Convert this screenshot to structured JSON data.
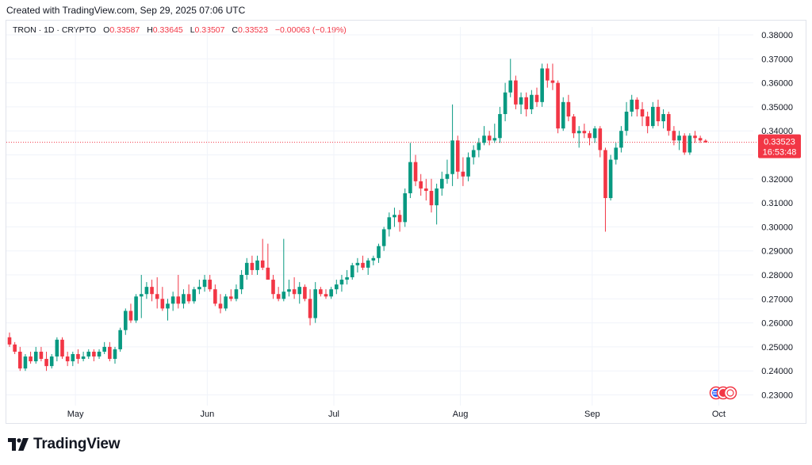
{
  "caption": "Created with TradingView.com, Sep 29, 2025 07:06 UTC",
  "legend": {
    "symbol": "TRON · 1D · CRYPTO",
    "open_label": "O",
    "open": "0.33587",
    "high_label": "H",
    "high": "0.33645",
    "low_label": "L",
    "low": "0.33507",
    "close_label": "C",
    "close": "0.33523",
    "change": "−0.00063 (−0.19%)"
  },
  "price_badge": {
    "price": "0.33523",
    "countdown": "16:53:48"
  },
  "brand": {
    "name": "TradingView"
  },
  "colors": {
    "up": "#089981",
    "down": "#f23645",
    "grid": "#f0f3fa",
    "text": "#131722"
  },
  "chart_data": {
    "type": "candlestick",
    "x_axis": {
      "ticks": [
        "May",
        "Jun",
        "Jul",
        "Aug",
        "Sep",
        "Oct"
      ]
    },
    "y_axis": {
      "position": "right",
      "range": [
        0.225,
        0.385
      ],
      "ticks": [
        "0.38000",
        "0.37000",
        "0.36000",
        "0.35000",
        "0.34000",
        "0.33000",
        "0.32000",
        "0.31000",
        "0.30000",
        "0.29000",
        "0.28000",
        "0.27000",
        "0.26000",
        "0.25000",
        "0.24000",
        "0.23000"
      ]
    },
    "last_price": 0.33523,
    "grid": true,
    "candles": [
      [
        0.254,
        0.256,
        0.25,
        0.251
      ],
      [
        0.251,
        0.252,
        0.247,
        0.248
      ],
      [
        0.248,
        0.25,
        0.24,
        0.241
      ],
      [
        0.241,
        0.247,
        0.24,
        0.246
      ],
      [
        0.246,
        0.248,
        0.243,
        0.244
      ],
      [
        0.244,
        0.25,
        0.243,
        0.248
      ],
      [
        0.248,
        0.25,
        0.244,
        0.245
      ],
      [
        0.245,
        0.248,
        0.24,
        0.242
      ],
      [
        0.242,
        0.247,
        0.241,
        0.246
      ],
      [
        0.246,
        0.254,
        0.244,
        0.253
      ],
      [
        0.253,
        0.254,
        0.245,
        0.246
      ],
      [
        0.246,
        0.248,
        0.242,
        0.244
      ],
      [
        0.244,
        0.248,
        0.242,
        0.247
      ],
      [
        0.247,
        0.249,
        0.243,
        0.245
      ],
      [
        0.245,
        0.248,
        0.244,
        0.246
      ],
      [
        0.246,
        0.249,
        0.245,
        0.248
      ],
      [
        0.248,
        0.249,
        0.244,
        0.246
      ],
      [
        0.246,
        0.249,
        0.245,
        0.248
      ],
      [
        0.248,
        0.252,
        0.247,
        0.25
      ],
      [
        0.25,
        0.252,
        0.244,
        0.245
      ],
      [
        0.245,
        0.25,
        0.243,
        0.249
      ],
      [
        0.249,
        0.258,
        0.248,
        0.257
      ],
      [
        0.257,
        0.266,
        0.255,
        0.265
      ],
      [
        0.265,
        0.268,
        0.26,
        0.261
      ],
      [
        0.261,
        0.272,
        0.26,
        0.271
      ],
      [
        0.271,
        0.28,
        0.262,
        0.272
      ],
      [
        0.272,
        0.277,
        0.27,
        0.275
      ],
      [
        0.275,
        0.278,
        0.269,
        0.272
      ],
      [
        0.272,
        0.279,
        0.266,
        0.27
      ],
      [
        0.27,
        0.275,
        0.265,
        0.266
      ],
      [
        0.266,
        0.27,
        0.261,
        0.268
      ],
      [
        0.268,
        0.273,
        0.265,
        0.271
      ],
      [
        0.271,
        0.28,
        0.266,
        0.268
      ],
      [
        0.268,
        0.274,
        0.266,
        0.272
      ],
      [
        0.272,
        0.276,
        0.268,
        0.269
      ],
      [
        0.269,
        0.275,
        0.268,
        0.274
      ],
      [
        0.274,
        0.278,
        0.272,
        0.275
      ],
      [
        0.275,
        0.28,
        0.273,
        0.278
      ],
      [
        0.278,
        0.28,
        0.273,
        0.274
      ],
      [
        0.274,
        0.276,
        0.267,
        0.268
      ],
      [
        0.268,
        0.272,
        0.264,
        0.266
      ],
      [
        0.266,
        0.272,
        0.265,
        0.271
      ],
      [
        0.271,
        0.274,
        0.269,
        0.27
      ],
      [
        0.27,
        0.276,
        0.269,
        0.274
      ],
      [
        0.274,
        0.282,
        0.272,
        0.28
      ],
      [
        0.28,
        0.287,
        0.278,
        0.285
      ],
      [
        0.285,
        0.288,
        0.28,
        0.282
      ],
      [
        0.282,
        0.288,
        0.28,
        0.286
      ],
      [
        0.286,
        0.295,
        0.282,
        0.283
      ],
      [
        0.283,
        0.293,
        0.278,
        0.278
      ],
      [
        0.278,
        0.28,
        0.27,
        0.272
      ],
      [
        0.272,
        0.275,
        0.269,
        0.27
      ],
      [
        0.27,
        0.295,
        0.269,
        0.273
      ],
      [
        0.273,
        0.278,
        0.271,
        0.274
      ],
      [
        0.274,
        0.279,
        0.27,
        0.272
      ],
      [
        0.272,
        0.277,
        0.268,
        0.275
      ],
      [
        0.275,
        0.276,
        0.269,
        0.27
      ],
      [
        0.27,
        0.274,
        0.259,
        0.262
      ],
      [
        0.262,
        0.277,
        0.26,
        0.274
      ],
      [
        0.274,
        0.275,
        0.271,
        0.272
      ],
      [
        0.272,
        0.274,
        0.27,
        0.271
      ],
      [
        0.271,
        0.275,
        0.27,
        0.274
      ],
      [
        0.274,
        0.278,
        0.272,
        0.276
      ],
      [
        0.276,
        0.28,
        0.273,
        0.278
      ],
      [
        0.278,
        0.282,
        0.276,
        0.279
      ],
      [
        0.279,
        0.285,
        0.278,
        0.284
      ],
      [
        0.284,
        0.287,
        0.281,
        0.285
      ],
      [
        0.285,
        0.288,
        0.282,
        0.283
      ],
      [
        0.283,
        0.287,
        0.28,
        0.286
      ],
      [
        0.286,
        0.288,
        0.284,
        0.287
      ],
      [
        0.287,
        0.293,
        0.285,
        0.292
      ],
      [
        0.292,
        0.3,
        0.29,
        0.299
      ],
      [
        0.299,
        0.306,
        0.296,
        0.304
      ],
      [
        0.304,
        0.308,
        0.3,
        0.305
      ],
      [
        0.305,
        0.307,
        0.298,
        0.302
      ],
      [
        0.302,
        0.316,
        0.3,
        0.314
      ],
      [
        0.314,
        0.335,
        0.312,
        0.327
      ],
      [
        0.327,
        0.33,
        0.317,
        0.319
      ],
      [
        0.319,
        0.322,
        0.313,
        0.316
      ],
      [
        0.316,
        0.32,
        0.311,
        0.315
      ],
      [
        0.315,
        0.32,
        0.306,
        0.309
      ],
      [
        0.309,
        0.318,
        0.301,
        0.316
      ],
      [
        0.316,
        0.323,
        0.313,
        0.32
      ],
      [
        0.32,
        0.328,
        0.318,
        0.322
      ],
      [
        0.322,
        0.351,
        0.317,
        0.336
      ],
      [
        0.336,
        0.338,
        0.32,
        0.323
      ],
      [
        0.323,
        0.329,
        0.317,
        0.321
      ],
      [
        0.321,
        0.331,
        0.319,
        0.329
      ],
      [
        0.329,
        0.334,
        0.326,
        0.332
      ],
      [
        0.332,
        0.337,
        0.329,
        0.335
      ],
      [
        0.335,
        0.342,
        0.334,
        0.338
      ],
      [
        0.338,
        0.34,
        0.334,
        0.336
      ],
      [
        0.336,
        0.343,
        0.335,
        0.337
      ],
      [
        0.337,
        0.35,
        0.335,
        0.347
      ],
      [
        0.347,
        0.36,
        0.344,
        0.356
      ],
      [
        0.356,
        0.37,
        0.354,
        0.361
      ],
      [
        0.361,
        0.363,
        0.349,
        0.351
      ],
      [
        0.351,
        0.356,
        0.347,
        0.354
      ],
      [
        0.354,
        0.356,
        0.346,
        0.349
      ],
      [
        0.349,
        0.357,
        0.347,
        0.355
      ],
      [
        0.355,
        0.358,
        0.35,
        0.352
      ],
      [
        0.352,
        0.368,
        0.35,
        0.366
      ],
      [
        0.366,
        0.368,
        0.358,
        0.361
      ],
      [
        0.361,
        0.368,
        0.357,
        0.36
      ],
      [
        0.36,
        0.361,
        0.339,
        0.341
      ],
      [
        0.341,
        0.354,
        0.34,
        0.352
      ],
      [
        0.352,
        0.355,
        0.344,
        0.346
      ],
      [
        0.346,
        0.347,
        0.337,
        0.339
      ],
      [
        0.339,
        0.342,
        0.333,
        0.34
      ],
      [
        0.34,
        0.343,
        0.337,
        0.339
      ],
      [
        0.339,
        0.34,
        0.334,
        0.337
      ],
      [
        0.337,
        0.342,
        0.335,
        0.341
      ],
      [
        0.341,
        0.342,
        0.329,
        0.332
      ],
      [
        0.332,
        0.333,
        0.298,
        0.312
      ],
      [
        0.312,
        0.33,
        0.311,
        0.328
      ],
      [
        0.328,
        0.335,
        0.326,
        0.333
      ],
      [
        0.333,
        0.342,
        0.331,
        0.34
      ],
      [
        0.34,
        0.352,
        0.338,
        0.348
      ],
      [
        0.348,
        0.355,
        0.346,
        0.353
      ],
      [
        0.353,
        0.354,
        0.346,
        0.349
      ],
      [
        0.349,
        0.352,
        0.342,
        0.346
      ],
      [
        0.346,
        0.348,
        0.339,
        0.342
      ],
      [
        0.342,
        0.352,
        0.341,
        0.35
      ],
      [
        0.35,
        0.353,
        0.342,
        0.344
      ],
      [
        0.344,
        0.349,
        0.341,
        0.347
      ],
      [
        0.347,
        0.348,
        0.338,
        0.34
      ],
      [
        0.34,
        0.342,
        0.334,
        0.336
      ],
      [
        0.336,
        0.34,
        0.332,
        0.338
      ],
      [
        0.338,
        0.339,
        0.33,
        0.331
      ],
      [
        0.331,
        0.339,
        0.33,
        0.338
      ],
      [
        0.338,
        0.34,
        0.335,
        0.337
      ],
      [
        0.337,
        0.338,
        0.335,
        0.336
      ],
      [
        0.3359,
        0.3365,
        0.3351,
        0.3352
      ]
    ]
  }
}
